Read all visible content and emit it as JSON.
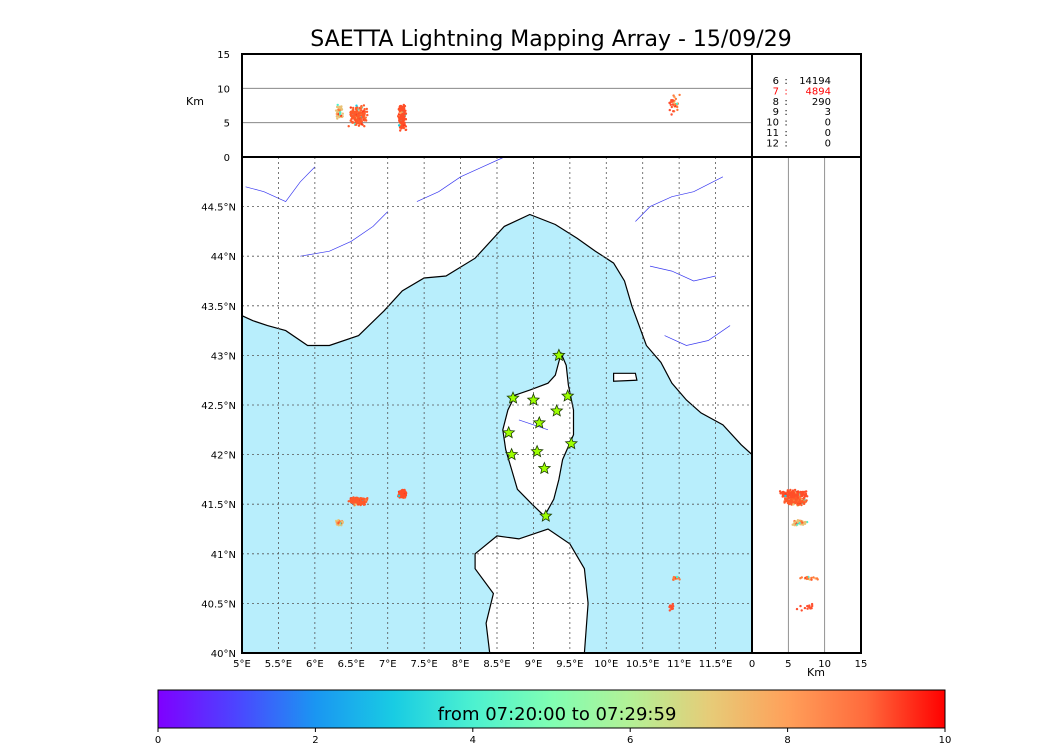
{
  "chart_data": {
    "type": "scatter",
    "title": "SAETTA Lightning Mapping Array - 15/09/29",
    "map": {
      "lon_ticks": [
        "5°E",
        "5.5°E",
        "6°E",
        "6.5°E",
        "7°E",
        "7.5°E",
        "8°E",
        "8.5°E",
        "9°E",
        "9.5°E",
        "10°E",
        "10.5°E",
        "11°E",
        "11.5°E"
      ],
      "lat_ticks": [
        "40°N",
        "40.5°N",
        "41°N",
        "41.5°N",
        "42°N",
        "42.5°N",
        "43°N",
        "43.5°N",
        "44°N",
        "44.5°N"
      ],
      "lon_range": [
        5,
        12
      ],
      "lat_range": [
        40,
        45
      ],
      "grid": "dotted",
      "sea_color": "#b8eefc",
      "land_color": "#ffffff"
    },
    "altitude_axis_label": "Km",
    "altitude_ticks": [
      "0",
      "5",
      "10",
      "15"
    ],
    "altitude_range": [
      0,
      15
    ],
    "stations": [
      {
        "lon": 9.35,
        "lat": 43.0
      },
      {
        "lon": 8.72,
        "lat": 42.57
      },
      {
        "lon": 9.0,
        "lat": 42.55
      },
      {
        "lon": 9.47,
        "lat": 42.59
      },
      {
        "lon": 9.32,
        "lat": 42.44
      },
      {
        "lon": 9.08,
        "lat": 42.32
      },
      {
        "lon": 8.66,
        "lat": 42.22
      },
      {
        "lon": 9.52,
        "lat": 42.11
      },
      {
        "lon": 8.7,
        "lat": 42.0
      },
      {
        "lon": 9.05,
        "lat": 42.03
      },
      {
        "lon": 9.15,
        "lat": 41.86
      },
      {
        "lon": 9.17,
        "lat": 41.38
      }
    ],
    "clusters": [
      {
        "name": "c1",
        "lon": 6.6,
        "lat": 41.53,
        "lon_spread": 0.15,
        "lat_spread": 0.05,
        "alt": 6.0,
        "alt_spread": 1.8,
        "color": "#ff5a2a",
        "n": 220
      },
      {
        "name": "c2",
        "lon": 6.33,
        "lat": 41.31,
        "lon_spread": 0.07,
        "lat_spread": 0.04,
        "alt": 6.5,
        "alt_spread": 1.5,
        "color": "#e9c174",
        "n": 50
      },
      {
        "name": "c3",
        "lon": 7.2,
        "lat": 41.6,
        "lon_spread": 0.07,
        "lat_spread": 0.05,
        "alt": 5.8,
        "alt_spread": 2.5,
        "color": "#ff4f28",
        "n": 230
      },
      {
        "name": "c4",
        "lon": 10.95,
        "lat": 40.75,
        "lon_spread": 0.07,
        "lat_spread": 0.03,
        "alt": 8.0,
        "alt_spread": 1.5,
        "color": "#ff7a3a",
        "n": 18
      },
      {
        "name": "c5",
        "lon": 10.9,
        "lat": 40.46,
        "lon_spread": 0.05,
        "lat_spread": 0.06,
        "alt": 7.5,
        "alt_spread": 2.0,
        "color": "#ff5030",
        "n": 14
      }
    ],
    "time_range": "from 07:20:00 to 07:29:59",
    "colorbar_ticks": [
      "0",
      "2",
      "4",
      "6",
      "8",
      "10"
    ],
    "colorbar_range": [
      0,
      10
    ],
    "colorbar_colors": [
      "#7f00ff",
      "#4c45ff",
      "#1a96f2",
      "#19cce3",
      "#4cf1d0",
      "#80feb3",
      "#b3f196",
      "#e6cc78",
      "#ffa05a",
      "#ff6a3c",
      "#ff0000"
    ],
    "station_counts": [
      {
        "label": "6",
        "count": "14194",
        "color": "#000000"
      },
      {
        "label": "7",
        "count": "4894",
        "color": "#ff0000"
      },
      {
        "label": "8",
        "count": "290",
        "color": "#000000"
      },
      {
        "label": "9",
        "count": "3",
        "color": "#000000"
      },
      {
        "label": "10",
        "count": "0",
        "color": "#000000"
      },
      {
        "label": "11",
        "count": "0",
        "color": "#000000"
      },
      {
        "label": "12",
        "count": "0",
        "color": "#000000"
      }
    ]
  }
}
